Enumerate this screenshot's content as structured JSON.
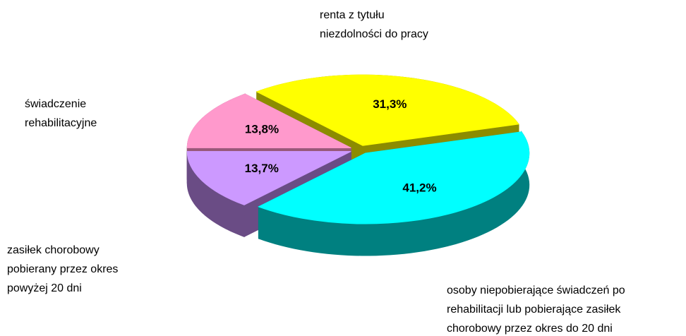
{
  "chart_data": {
    "type": "pie3d",
    "categories": [
      [
        "renta z tytułu",
        "niezdolności do pracy"
      ],
      [
        "osoby niepobierające świadczeń po",
        "rehabilitacji lub pobierające zasiłek",
        "chorobowy przez okres do 20 dni"
      ],
      [
        "zasiłek chorobowy",
        "pobierany przez okres",
        "powyżej 20 dni"
      ],
      [
        "świadczenie",
        "rehabilitacyjne"
      ]
    ],
    "values": [
      31.3,
      41.2,
      13.7,
      13.8
    ],
    "value_labels": [
      "31,3%",
      "41,2%",
      "13,7%",
      "13,8%"
    ],
    "colors": [
      "#ffff00",
      "#00ffff",
      "#cc99ff",
      "#ff99cc"
    ],
    "side_colors": [
      "#8c8c00",
      "#008080",
      "#6a4c85",
      "#99587a"
    ]
  }
}
